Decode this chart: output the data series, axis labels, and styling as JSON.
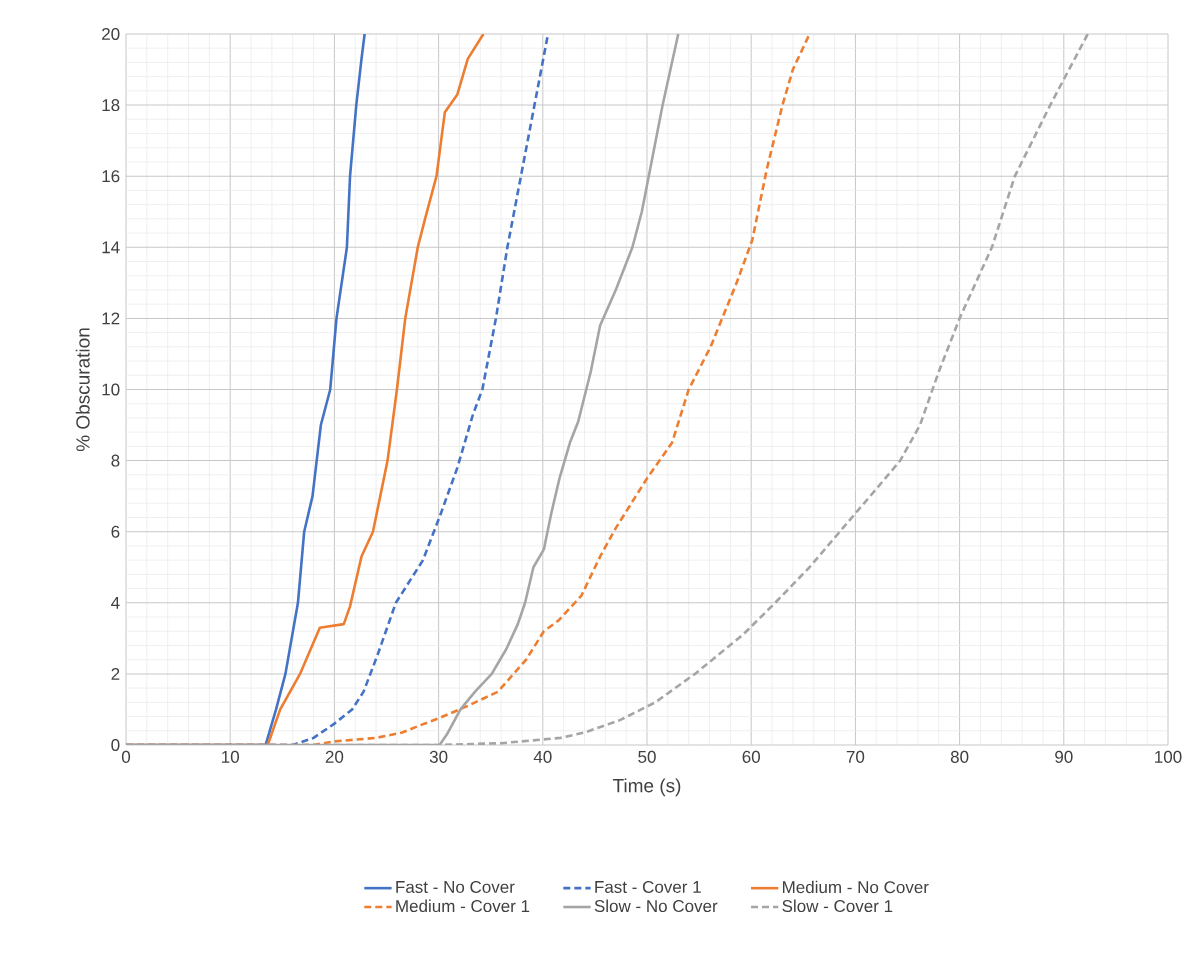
{
  "chart_data": {
    "type": "line",
    "xlabel": "Time (s)",
    "ylabel": "% Obscuration",
    "xlim": [
      0,
      100
    ],
    "xticks": [
      0,
      10,
      20,
      30,
      40,
      50,
      60,
      70,
      80,
      90,
      100
    ],
    "ylim": [
      0,
      20
    ],
    "yticks": [
      0,
      2,
      4,
      6,
      8,
      10,
      12,
      14,
      16,
      18,
      20
    ],
    "grid": true,
    "legend": "bottom",
    "marker": "none",
    "series": [
      {
        "name": "Fast - No Cover",
        "color": "#4472c4",
        "line_style": "solid",
        "x": [
          0,
          13.4,
          14.4,
          15.3,
          16.5,
          17.1,
          17.9,
          18.7,
          19.6,
          20.2,
          21.2,
          21.5,
          22.1,
          22.6,
          22.9
        ],
        "values": [
          0,
          0,
          1,
          2,
          4,
          6,
          7,
          9,
          10,
          12,
          14,
          16,
          18,
          19.3,
          20
        ]
      },
      {
        "name": "Fast - Cover 1",
        "color": "#4472c4",
        "line_style": "dashed",
        "x": [
          0,
          14,
          16,
          18,
          20,
          21.7,
          22.8,
          24.1,
          25.9,
          28.5,
          30.2,
          31.8,
          33.3,
          34.2,
          35.5,
          36.6,
          37.9,
          39.2,
          40.5
        ],
        "values": [
          0,
          0,
          0,
          0.2,
          0.6,
          1,
          1.5,
          2.5,
          4,
          5.2,
          6.5,
          7.8,
          9.3,
          10,
          12,
          14,
          16,
          18,
          20
        ]
      },
      {
        "name": "Medium - No Cover",
        "color": "#ed7d31",
        "line_style": "solid",
        "x": [
          0,
          13.6,
          14.8,
          16.7,
          18.6,
          20.9,
          21.5,
          22.6,
          23.7,
          25.1,
          26,
          26.8,
          28,
          28.7,
          29.8,
          30.6,
          31.8,
          32.8,
          34.3
        ],
        "values": [
          0,
          0,
          1,
          2,
          3.3,
          3.4,
          3.9,
          5.3,
          6,
          8,
          10,
          12,
          14,
          14.8,
          16,
          17.8,
          18.3,
          19.3,
          20
        ]
      },
      {
        "name": "Medium - Cover 1",
        "color": "#ed7d31",
        "line_style": "dashed",
        "x": [
          0,
          18,
          20,
          24,
          26.5,
          28.2,
          30,
          32.8,
          35.7,
          38.4,
          40.1,
          41.5,
          43.7,
          45.5,
          47,
          50,
          52.4,
          54,
          56.1,
          58.6,
          60.1,
          61.5,
          63,
          64,
          65.6
        ],
        "values": [
          0,
          0,
          0.1,
          0.2,
          0.35,
          0.55,
          0.75,
          1.1,
          1.5,
          2.4,
          3.2,
          3.5,
          4.2,
          5.3,
          6.1,
          7.5,
          8.5,
          10,
          11.2,
          13,
          14.2,
          16.2,
          18,
          19,
          20
        ]
      },
      {
        "name": "Slow - No Cover",
        "color": "#a5a5a5",
        "line_style": "solid",
        "x": [
          0,
          30.1,
          30.8,
          32.1,
          33.5,
          35.1,
          36.5,
          37.6,
          38.3,
          39.1,
          40.1,
          40.8,
          41.6,
          42.6,
          43.4,
          44.6,
          45.5,
          47,
          48.6,
          49.5,
          50.5,
          51.5,
          53
        ],
        "values": [
          0,
          0,
          0.3,
          1,
          1.5,
          2,
          2.7,
          3.4,
          4,
          5,
          5.5,
          6.5,
          7.5,
          8.5,
          9.1,
          10.5,
          11.8,
          12.8,
          14,
          15,
          16.5,
          18,
          20
        ]
      },
      {
        "name": "Slow - Cover 1",
        "color": "#a5a5a5",
        "line_style": "dashed",
        "x": [
          0,
          30,
          36,
          41.7,
          44,
          47.4,
          50.8,
          54.6,
          59.2,
          62.3,
          65.6,
          68.5,
          72,
          74.3,
          76.2,
          78,
          80,
          83.1,
          85.3,
          88.7,
          92.3
        ],
        "values": [
          0,
          0,
          0.05,
          0.2,
          0.35,
          0.7,
          1.2,
          2,
          3.1,
          4,
          5,
          6,
          7.2,
          8,
          9,
          10.5,
          12,
          14,
          16,
          18,
          20
        ]
      }
    ]
  }
}
